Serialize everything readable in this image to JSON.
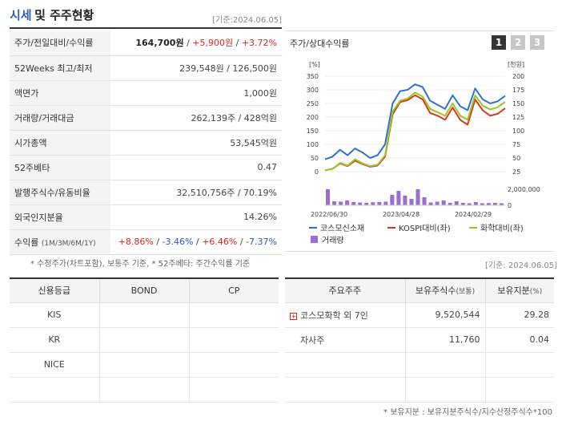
{
  "header": {
    "title_main": "시세",
    "title_sub": "및 주주현황",
    "base_date": "[기준:2024.06.05]"
  },
  "info": [
    {
      "label": "주가/전일대비/수익률",
      "price": "164,700원",
      "sep1": " / ",
      "change": "+5,900원",
      "sep2": " / ",
      "rate": "+3.72%"
    },
    {
      "label": "52Weeks 최고/최저",
      "value": "239,548원 / 126,500원"
    },
    {
      "label": "액면가",
      "value": "1,000원"
    },
    {
      "label": "거래량/거래대금",
      "value": "262,139주 / 428억원"
    },
    {
      "label": "시가총액",
      "value": "53,545억원"
    },
    {
      "label": "52주베타",
      "value": "0.47"
    },
    {
      "label": "발행주식수/유동비율",
      "value": "32,510,756주 / 70.19%"
    },
    {
      "label": "외국인지분율",
      "value": "14.26%"
    },
    {
      "label": "수익률",
      "label_sub": "(1M/3M/6M/1Y)",
      "r1": "+8.86%",
      "r2": "-3.46%",
      "r3": "+6.46%",
      "r4": "-7.37%",
      "sep": "/"
    }
  ],
  "note1": "* 수정주가(차트포함), 보통주 기준, * 52주베타: 주간수익률 기준",
  "chart_panel": {
    "title": "주가/상대수익률",
    "buttons": [
      "1",
      "2",
      "3"
    ],
    "active_button": 0
  },
  "chart_data": {
    "type": "line",
    "left_unit": "[%]",
    "right_unit": "[천원]",
    "left_ticks": [
      "350",
      "300",
      "250",
      "200",
      "150",
      "100",
      "50",
      "0"
    ],
    "right_ticks": [
      "200",
      "175",
      "150",
      "125",
      "100",
      "75",
      "50",
      "25"
    ],
    "volume_tick": "2,000,000",
    "volume_zero": "0",
    "x_labels": [
      "2022/06/30",
      "2023/04/28",
      "2024/02/29"
    ],
    "ylim_left": [
      0,
      350
    ],
    "series": [
      {
        "name": "코스모신소재",
        "color": "#2f6fd6",
        "values": [
          45,
          55,
          80,
          60,
          85,
          70,
          50,
          60,
          100,
          250,
          295,
          300,
          320,
          310,
          260,
          245,
          230,
          280,
          240,
          225,
          305,
          265,
          250,
          258,
          278
        ]
      },
      {
        "name": "KOSPI대비(좌)",
        "color": "#d63a1f",
        "values": [
          5,
          10,
          30,
          20,
          40,
          28,
          18,
          22,
          55,
          210,
          255,
          262,
          280,
          265,
          215,
          205,
          190,
          235,
          190,
          172,
          265,
          225,
          205,
          212,
          232
        ]
      },
      {
        "name": "화학대비(좌)",
        "color": "#9bc626",
        "values": [
          5,
          10,
          32,
          22,
          45,
          30,
          20,
          25,
          60,
          220,
          260,
          268,
          290,
          275,
          230,
          218,
          205,
          250,
          205,
          190,
          280,
          242,
          228,
          236,
          256
        ]
      }
    ],
    "volume_name": "거래량",
    "volume_color": "#9b6fd0",
    "volume": [
      2000000,
      500000,
      450000,
      600000,
      400000,
      350000,
      300000,
      380000,
      400000,
      450000,
      1300000,
      1800000,
      1200000,
      800000,
      2000000,
      1000000,
      350000,
      450000,
      600000,
      300000,
      500000,
      300000,
      250000,
      400000,
      250000,
      280000,
      300000,
      250000
    ],
    "volume_max": 2000000
  },
  "base2": "[기준: 2024.06.05]",
  "credit": {
    "headers": [
      "신용등급",
      "BOND",
      "CP"
    ],
    "rows": [
      [
        "KIS",
        "",
        ""
      ],
      [
        "KR",
        "",
        ""
      ],
      [
        "NICE",
        "",
        ""
      ],
      [
        "",
        "",
        ""
      ]
    ]
  },
  "owners": {
    "headers": [
      "주요주주",
      "보유주식수",
      "(보통)",
      "보유지분",
      "(%)"
    ],
    "rows": [
      {
        "name": "코스모화학 외 7인",
        "shares": "9,520,544",
        "ratio": "29.28",
        "expand": "+"
      },
      {
        "name": "자사주",
        "shares": "11,760",
        "ratio": "0.04",
        "expand": ""
      },
      {
        "name": "",
        "shares": "",
        "ratio": "",
        "expand": ""
      },
      {
        "name": "",
        "shares": "",
        "ratio": "",
        "expand": ""
      }
    ]
  },
  "note2": "* 보유지분 : 보유지분주식수/지수산정주식수*100"
}
